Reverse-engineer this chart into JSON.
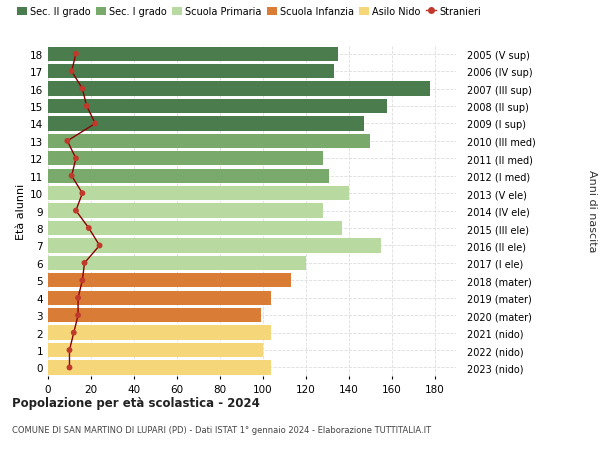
{
  "ages": [
    18,
    17,
    16,
    15,
    14,
    13,
    12,
    11,
    10,
    9,
    8,
    7,
    6,
    5,
    4,
    3,
    2,
    1,
    0
  ],
  "labels_right": [
    "2005 (V sup)",
    "2006 (IV sup)",
    "2007 (III sup)",
    "2008 (II sup)",
    "2009 (I sup)",
    "2010 (III med)",
    "2011 (II med)",
    "2012 (I med)",
    "2013 (V ele)",
    "2014 (IV ele)",
    "2015 (III ele)",
    "2016 (II ele)",
    "2017 (I ele)",
    "2018 (mater)",
    "2019 (mater)",
    "2020 (mater)",
    "2021 (nido)",
    "2022 (nido)",
    "2023 (nido)"
  ],
  "bar_values": [
    135,
    133,
    178,
    158,
    147,
    150,
    128,
    131,
    140,
    128,
    137,
    155,
    120,
    113,
    104,
    99,
    104,
    100,
    104
  ],
  "bar_colors": [
    "#4a7c4e",
    "#4a7c4e",
    "#4a7c4e",
    "#4a7c4e",
    "#4a7c4e",
    "#7aaa6b",
    "#7aaa6b",
    "#7aaa6b",
    "#b8d9a0",
    "#b8d9a0",
    "#b8d9a0",
    "#b8d9a0",
    "#b8d9a0",
    "#d97c35",
    "#d97c35",
    "#d97c35",
    "#f5d77a",
    "#f5d77a",
    "#f5d77a"
  ],
  "stranieri_values": [
    13,
    11,
    16,
    18,
    22,
    9,
    13,
    11,
    16,
    13,
    19,
    24,
    17,
    16,
    14,
    14,
    12,
    10,
    10
  ],
  "legend_labels": [
    "Sec. II grado",
    "Sec. I grado",
    "Scuola Primaria",
    "Scuola Infanzia",
    "Asilo Nido",
    "Stranieri"
  ],
  "legend_colors": [
    "#4a7c4e",
    "#7aaa6b",
    "#b8d9a0",
    "#d97c35",
    "#f5d77a",
    "#b22222"
  ],
  "ylabel_left": "Età alunni",
  "ylabel_right": "Anni di nascita",
  "title1": "Popolazione per età scolastica - 2024",
  "title2": "COMUNE DI SAN MARTINO DI LUPARI (PD) - Dati ISTAT 1° gennaio 2024 - Elaborazione TUTTITALIA.IT",
  "xlim": [
    0,
    190
  ],
  "xticks": [
    0,
    20,
    40,
    60,
    80,
    100,
    120,
    140,
    160,
    180
  ],
  "bg_color": "#ffffff",
  "plot_bg": "#ffffff",
  "grid_color": "#dddddd"
}
